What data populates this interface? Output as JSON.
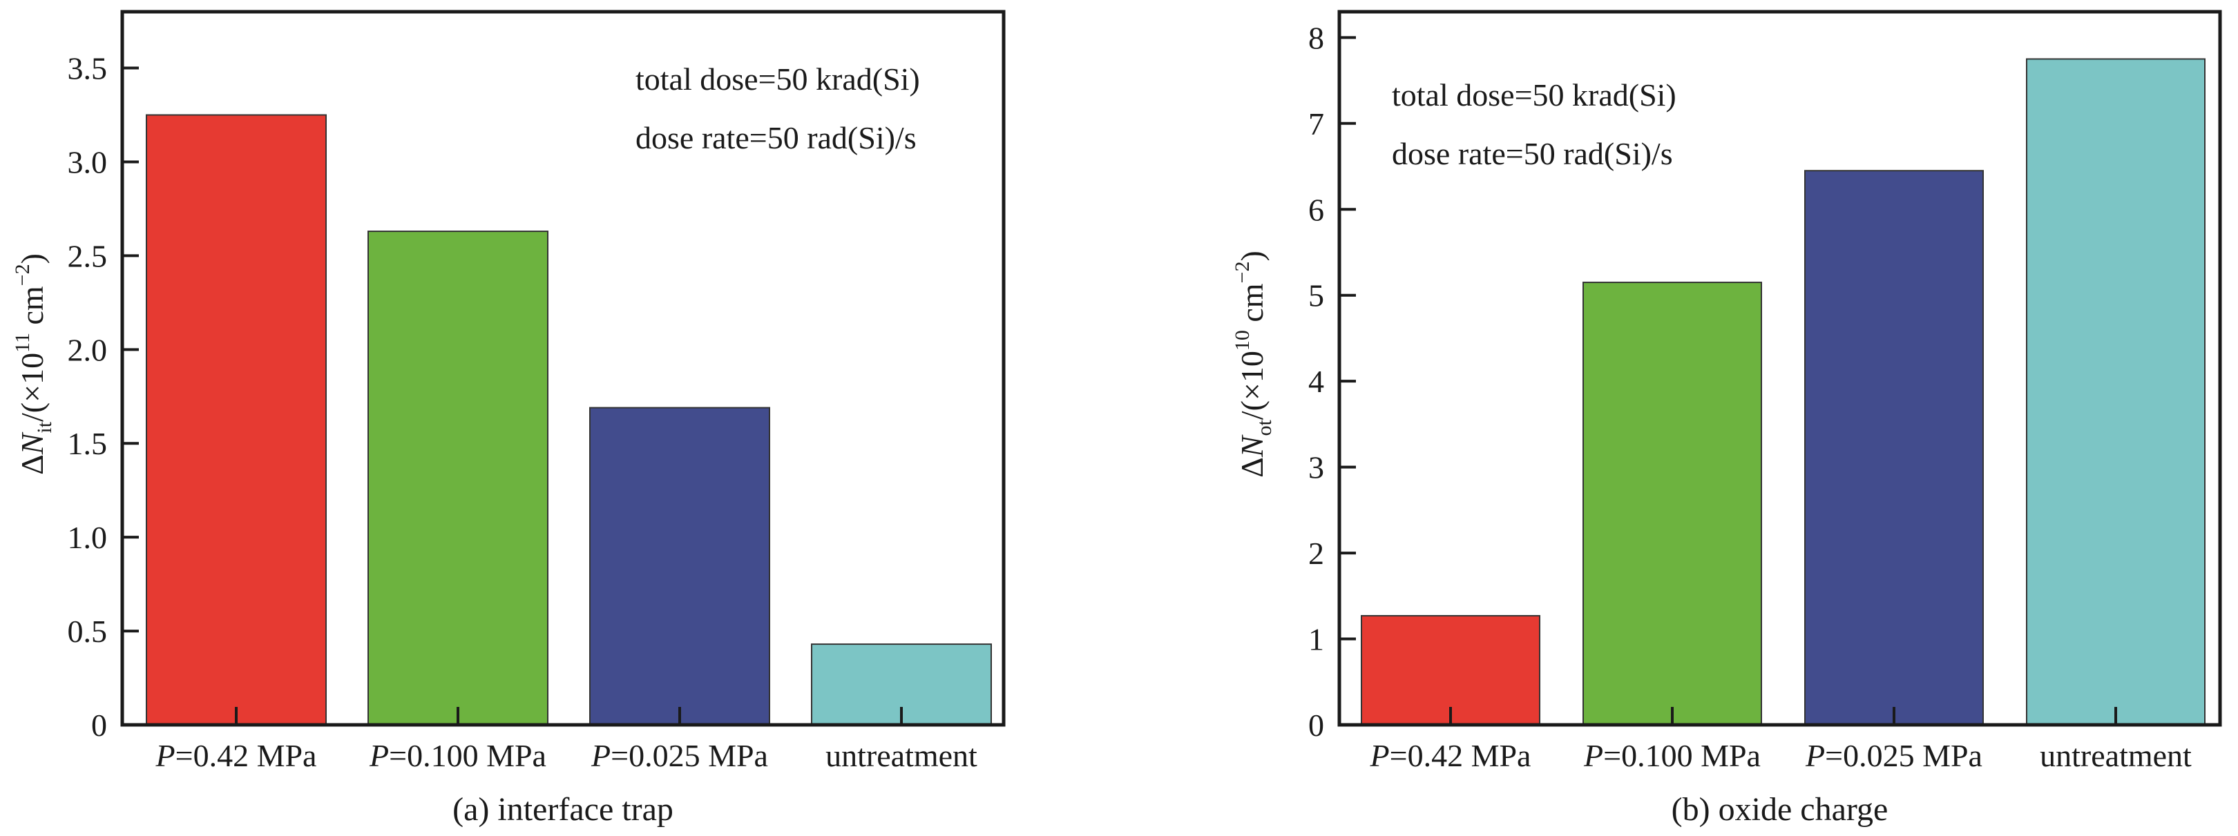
{
  "chart_data": [
    {
      "type": "bar",
      "caption": "(a) interface trap",
      "ylabel": {
        "prefix": "ΔN",
        "subscript": "it",
        "mid": "/(×10",
        "power": "11",
        "unit": " cm",
        "unit_power": "−2",
        "close": ")"
      },
      "ylim": [
        0,
        3.8
      ],
      "yticks": [
        0,
        0.5,
        1.0,
        1.5,
        2.0,
        2.5,
        3.0,
        3.5
      ],
      "ytick_labels": [
        "0",
        "0.5",
        "1.0",
        "1.5",
        "2.0",
        "2.5",
        "3.0",
        "3.5"
      ],
      "categories": [
        {
          "italic": "P",
          "rest": "=0.42 MPa"
        },
        {
          "italic": "P",
          "rest": "=0.100 MPa"
        },
        {
          "italic": "P",
          "rest": "=0.025 MPa"
        },
        {
          "italic": "",
          "rest": "untreatment"
        }
      ],
      "values": [
        3.25,
        2.63,
        1.69,
        0.43
      ],
      "colors": [
        "#e63a32",
        "#6db33f",
        "#424c8d",
        "#7cc5c5"
      ],
      "annotations": [
        "total dose=50 krad(Si)",
        "dose rate=50 rad(Si)/s"
      ],
      "grid": false,
      "legend": "none"
    },
    {
      "type": "bar",
      "caption": "(b) oxide charge",
      "ylabel": {
        "prefix": "ΔN",
        "subscript": "ot",
        "mid": "/(×10",
        "power": "10",
        "unit": " cm",
        "unit_power": "−2",
        "close": ")"
      },
      "ylim": [
        0,
        8.3
      ],
      "yticks": [
        0,
        1,
        2,
        3,
        4,
        5,
        6,
        7,
        8
      ],
      "ytick_labels": [
        "0",
        "1",
        "2",
        "3",
        "4",
        "5",
        "6",
        "7",
        "8"
      ],
      "categories": [
        {
          "italic": "P",
          "rest": "=0.42 MPa"
        },
        {
          "italic": "P",
          "rest": "=0.100 MPa"
        },
        {
          "italic": "P",
          "rest": "=0.025 MPa"
        },
        {
          "italic": "",
          "rest": "untreatment"
        }
      ],
      "values": [
        1.27,
        5.15,
        6.45,
        7.75
      ],
      "colors": [
        "#e63a32",
        "#6db33f",
        "#424c8d",
        "#7cc5c5"
      ],
      "annotations": [
        "total dose=50 krad(Si)",
        "dose rate=50 rad(Si)/s"
      ],
      "grid": false,
      "legend": "none"
    }
  ]
}
